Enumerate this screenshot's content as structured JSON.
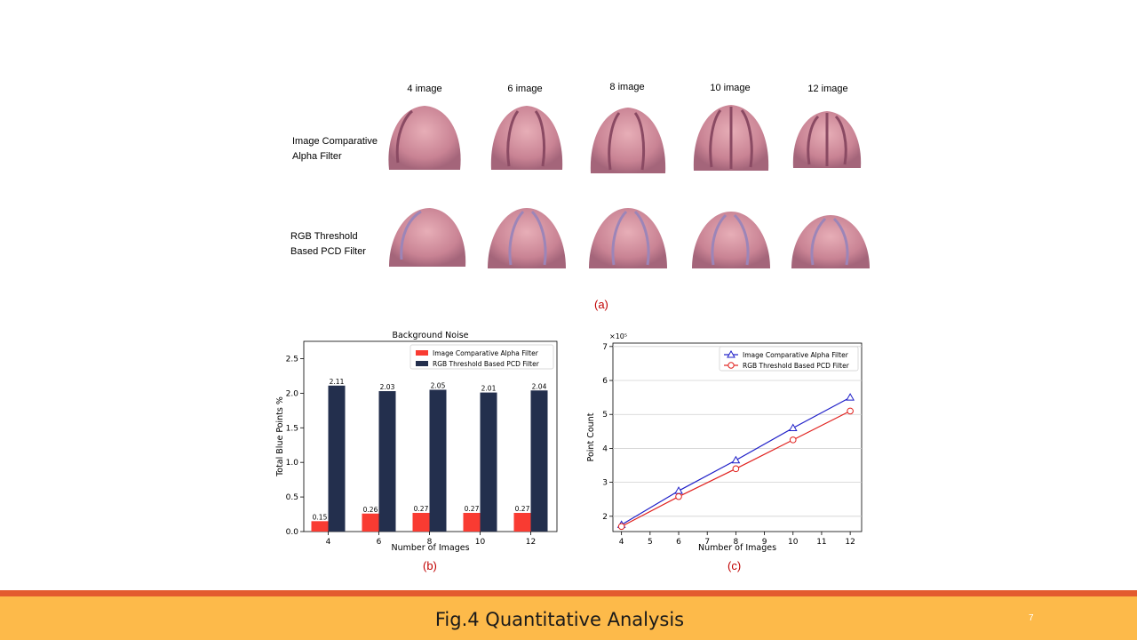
{
  "figure_a": {
    "column_labels": [
      "4 image",
      "6 image",
      "8 image",
      "10 image",
      "12 image"
    ],
    "row_labels": [
      [
        "Image Comparative",
        "Alpha Filter"
      ],
      [
        "RGB Threshold",
        "Based PCD Filter"
      ]
    ],
    "panel_label": "(a)"
  },
  "chart_data": [
    {
      "type": "bar",
      "title": "Background Noise",
      "xlabel": "Number of Images",
      "ylabel": "Total Blue Points %",
      "categories": [
        "4",
        "6",
        "8",
        "10",
        "12"
      ],
      "series": [
        {
          "name": "Image Comparative Alpha Filter",
          "values": [
            0.15,
            0.26,
            0.27,
            0.27,
            0.27
          ],
          "color": "#f93b32"
        },
        {
          "name": "RGB Threshold Based PCD Filter",
          "values": [
            2.11,
            2.03,
            2.05,
            2.01,
            2.04
          ],
          "color": "#232f4d"
        }
      ],
      "ylim": [
        0,
        2.75
      ],
      "yticks": [
        "0.0",
        "0.5",
        "1.0",
        "1.5",
        "2.0",
        "2.5"
      ],
      "data_labels": {
        "Image Comparative Alpha Filter": [
          "0.15",
          "0.26",
          "0.27",
          "0.27",
          "0.27"
        ],
        "RGB Threshold Based PCD Filter": [
          "2.11",
          "2.03",
          "2.05",
          "2.01",
          "2.04"
        ]
      },
      "legend": "top-right",
      "grid": false,
      "panel_label": "(b)"
    },
    {
      "type": "line",
      "xlabel": "Number of Images",
      "ylabel": "Point Count",
      "axis_multiplier": "×10⁵",
      "x": [
        4,
        6,
        8,
        10,
        12
      ],
      "series": [
        {
          "name": "Image Comparative Alpha Filter",
          "values": [
            1.75,
            2.75,
            3.65,
            4.6,
            5.5
          ],
          "color": "#1f1fc8",
          "marker": "triangle"
        },
        {
          "name": "RGB Threshold Based PCD Filter",
          "values": [
            1.7,
            2.58,
            3.4,
            4.25,
            5.1
          ],
          "color": "#e0201d",
          "marker": "circle"
        }
      ],
      "xlim": [
        4,
        12
      ],
      "ylim": [
        1.75,
        7.1
      ],
      "xticks": [
        "4",
        "5",
        "6",
        "7",
        "8",
        "9",
        "10",
        "11",
        "12"
      ],
      "yticks": [
        "2",
        "3",
        "4",
        "5",
        "6",
        "7"
      ],
      "legend": "top-right",
      "grid": true,
      "panel_label": "(c)"
    }
  ],
  "footer": {
    "title": "Fig.4 Quantitative Analysis",
    "page_number": "7"
  }
}
